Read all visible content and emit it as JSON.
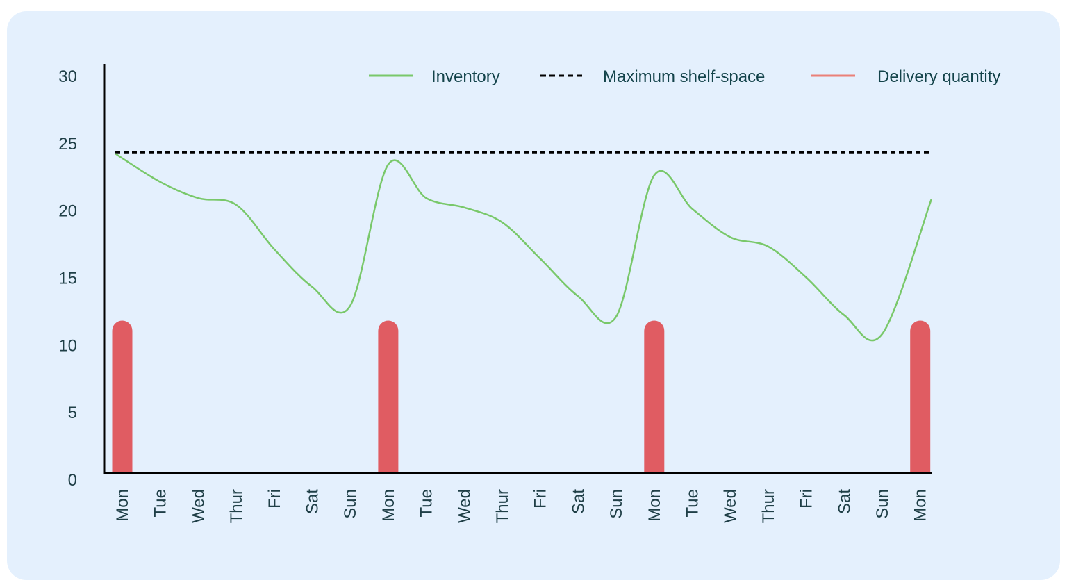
{
  "chart_data": {
    "type": "line",
    "title": "",
    "xlabel": "",
    "ylabel": "",
    "ylim": [
      0,
      30
    ],
    "yticks": [
      0,
      5,
      10,
      15,
      20,
      25,
      30
    ],
    "grid": false,
    "legend_position": "top-right",
    "categories": [
      "Mon",
      "Tue",
      "Wed",
      "Thur",
      "Fri",
      "Sat",
      "Sun",
      "Mon",
      "Tue",
      "Wed",
      "Thur",
      "Fri",
      "Sat",
      "Sun",
      "Mon",
      "Tue",
      "Wed",
      "Thur",
      "Fri",
      "Sat",
      "Sun",
      "Mon"
    ],
    "series": [
      {
        "name": "Inventory",
        "type": "line",
        "color": "#79c86a",
        "style": "smooth",
        "values": [
          24.2,
          22.1,
          20.9,
          20.4,
          17.1,
          14.3,
          12.9,
          23.4,
          20.9,
          20.2,
          19.1,
          16.4,
          13.6,
          12.1,
          22.6,
          20.1,
          18.0,
          17.3,
          15.0,
          12.2,
          10.8,
          20.8
        ]
      },
      {
        "name": "Maximum shelf-space",
        "type": "dashed-line",
        "color": "#000000",
        "values": [
          24.3,
          24.3,
          24.3,
          24.3,
          24.3,
          24.3,
          24.3,
          24.3,
          24.3,
          24.3,
          24.3,
          24.3,
          24.3,
          24.3,
          24.3,
          24.3,
          24.3,
          24.3,
          24.3,
          24.3,
          24.3,
          24.3
        ]
      },
      {
        "name": "Delivery quantity",
        "type": "bar",
        "color": "#e05c62",
        "values": [
          12,
          0,
          0,
          0,
          0,
          0,
          0,
          12,
          0,
          0,
          0,
          0,
          0,
          0,
          12,
          0,
          0,
          0,
          0,
          0,
          0,
          12
        ]
      }
    ]
  },
  "legend": {
    "items": [
      {
        "label": "Inventory",
        "color": "#79c86a"
      },
      {
        "label": "Maximum shelf-space",
        "color": "#000000"
      },
      {
        "label": "Delivery quantity",
        "color": "#ea8078"
      }
    ]
  },
  "colors": {
    "panel_bg": "#e4f0fd",
    "axis": "#000000",
    "text": "#1f3f47"
  }
}
